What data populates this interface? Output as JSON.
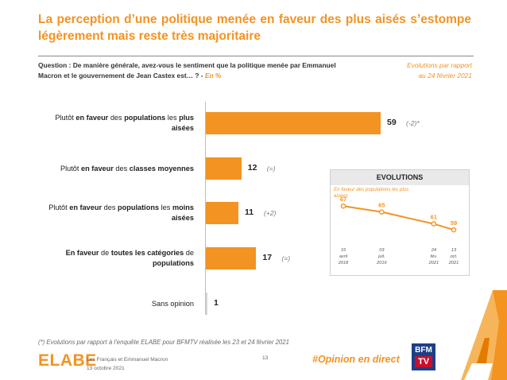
{
  "title_line1": "La perception d’une politique menée en faveur des plus aisés s’estompe",
  "title_line2": "légèrement mais reste très majoritaire",
  "question_text": "Question : De manière générale, avez-vous le sentiment que la politique menée par Emmanuel Macron et le gouvernement de Jean Castex est… ? - ",
  "question_unit": "En %",
  "evol_note_line1": "Evolutions par rapport",
  "evol_note_line2": "au 24 février 2021",
  "chart_data": [
    {
      "type": "bar",
      "orientation": "horizontal",
      "categories": [
        "Plutôt en faveur des populations les plus aisées",
        "Plutôt en faveur des classes moyennes",
        "Plutôt en faveur des populations les moins aisées",
        "En faveur de toutes les catégories de populations",
        "Sans opinion"
      ],
      "category_parts": [
        {
          "a": "Plutôt ",
          "b": "en faveur",
          "c": " des ",
          "d": "populations",
          "e": " les ",
          "f": "plus aisées"
        },
        {
          "a": "Plutôt ",
          "b": "en faveur",
          "c": " des ",
          "d": "classes moyennes",
          "e": "",
          "f": ""
        },
        {
          "a": "Plutôt ",
          "b": "en faveur",
          "c": " des ",
          "d": "populations",
          "e": " les ",
          "f": "moins aisées"
        },
        {
          "a": "",
          "b": "En faveur",
          "c": " de ",
          "d": "toutes les catégories",
          "e": " de ",
          "f": "populations"
        },
        {
          "a": "Sans opinion",
          "b": "",
          "c": "",
          "d": "",
          "e": "",
          "f": ""
        }
      ],
      "values": [
        59,
        12,
        11,
        17,
        1
      ],
      "value_labels": [
        "59",
        "12",
        "11",
        "17",
        "1"
      ],
      "deltas": [
        "(-2)*",
        "(=)",
        "(+2)",
        "(=)",
        ""
      ],
      "bar_color": "#f39322",
      "xlim": [
        0,
        59
      ]
    },
    {
      "type": "line",
      "title": "EVOLUTIONS",
      "series": [
        {
          "name": "En faveur des populations les plus aisées",
          "values": [
            67,
            65,
            61,
            59
          ],
          "labels": [
            "67",
            "65",
            "61",
            "59"
          ]
        }
      ],
      "x": [
        {
          "day": "15",
          "month": "avril",
          "year": "2018",
          "date": "2018-04-15"
        },
        {
          "day": "03",
          "month": "juil.",
          "year": "2019",
          "date": "2019-07-03"
        },
        {
          "day": "24",
          "month": "fév.",
          "year": "2021",
          "date": "2021-02-24"
        },
        {
          "day": "13",
          "month": "oct.",
          "year": "2021",
          "date": "2021-10-13"
        }
      ],
      "color": "#f39322"
    }
  ],
  "footnote": "(*) Evolutions par rapport à l’enquête ELABE pour BFMTV réalisée les 23 et 24 février 2021",
  "footer": {
    "logo": "ELABE",
    "study_title": "Les Français et Emmanuel Macron",
    "date": "13 octobre 2021",
    "page": "13",
    "hashtag": "#Opinion en direct",
    "partner_top": "BFM",
    "partner_bottom": "TV"
  },
  "colors": {
    "accent": "#f39322",
    "partner": "#1d3f86",
    "partner_red": "#c8102e"
  }
}
